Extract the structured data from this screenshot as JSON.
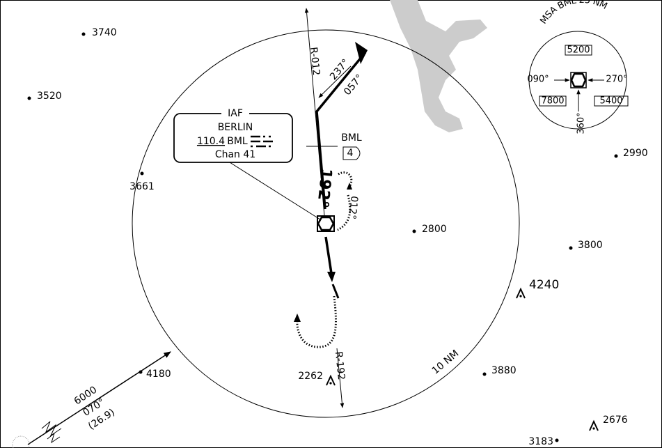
{
  "spot_elevations": [
    "3740",
    "3520",
    "3661",
    "2800",
    "3800",
    "2990",
    "3880",
    "4180",
    "3183"
  ],
  "peaks": [
    "4240",
    "2262",
    "2676"
  ],
  "radials": {
    "north": "R-012",
    "south": "R-192"
  },
  "courses": {
    "outbound": "057°",
    "reverse": "237°",
    "final": "192°",
    "hold": "012°"
  },
  "facility": {
    "tag": "IAF",
    "name": "BERLIN",
    "frequency": "110.4",
    "ident": "BML",
    "channel": "Chan 41"
  },
  "fix": {
    "ident": "BML",
    "dme": "4"
  },
  "ring_label": "10 NM",
  "feeder": {
    "altitude": "6000",
    "course": "070°",
    "distance": "(26.9)"
  },
  "msa": {
    "title": "MSA BML 25 NM",
    "sectors": {
      "north": "5200",
      "left": "7800",
      "right": "5400"
    },
    "bearings": {
      "west": "090°",
      "east": "270°",
      "south": "360°"
    }
  }
}
